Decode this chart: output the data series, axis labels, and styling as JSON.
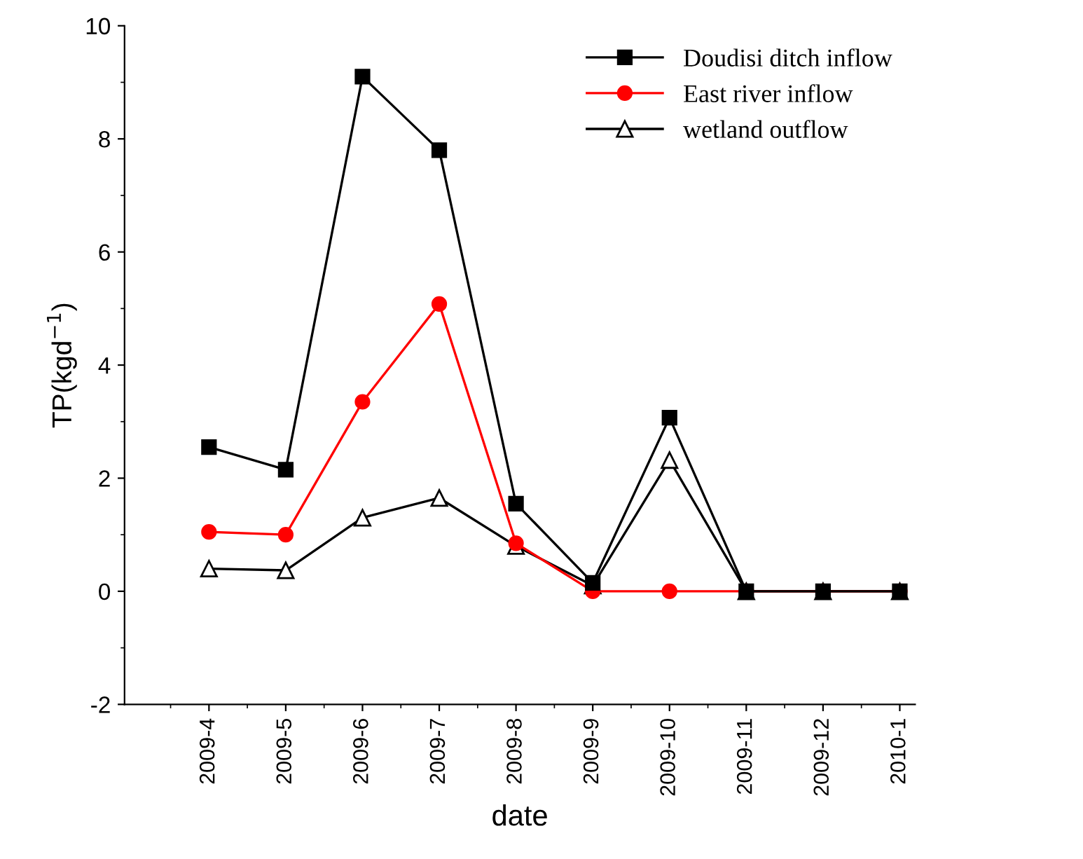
{
  "chart_data": {
    "type": "line",
    "xlabel": "date",
    "ylabel": "TP(kgd$^{−1}$)",
    "categories": [
      "2009-4",
      "2009-5",
      "2009-6",
      "2009-7",
      "2009-8",
      "2009-9",
      "2009-10",
      "2009-11",
      "2009-12",
      "2010-1"
    ],
    "series": [
      {
        "name": "Doudisi ditch inflow",
        "color": "#000000",
        "marker": "square",
        "values": [
          2.55,
          2.15,
          9.1,
          7.8,
          1.55,
          0.15,
          3.07,
          0,
          0,
          0
        ]
      },
      {
        "name": "East river inflow",
        "color": "#ff0000",
        "marker": "circle",
        "values": [
          1.05,
          1.0,
          3.35,
          5.08,
          0.85,
          0,
          0,
          0,
          0,
          0
        ]
      },
      {
        "name": "wetland outflow",
        "color": "#000000",
        "marker": "triangle",
        "values": [
          0.4,
          0.37,
          1.3,
          1.65,
          0.8,
          0.1,
          2.32,
          0,
          0,
          0
        ]
      }
    ],
    "ylim": [
      -2,
      10
    ],
    "yticks": [
      -2,
      0,
      2,
      4,
      6,
      8,
      10
    ],
    "grid": false,
    "legend": "top right",
    "line_style": "solid"
  }
}
